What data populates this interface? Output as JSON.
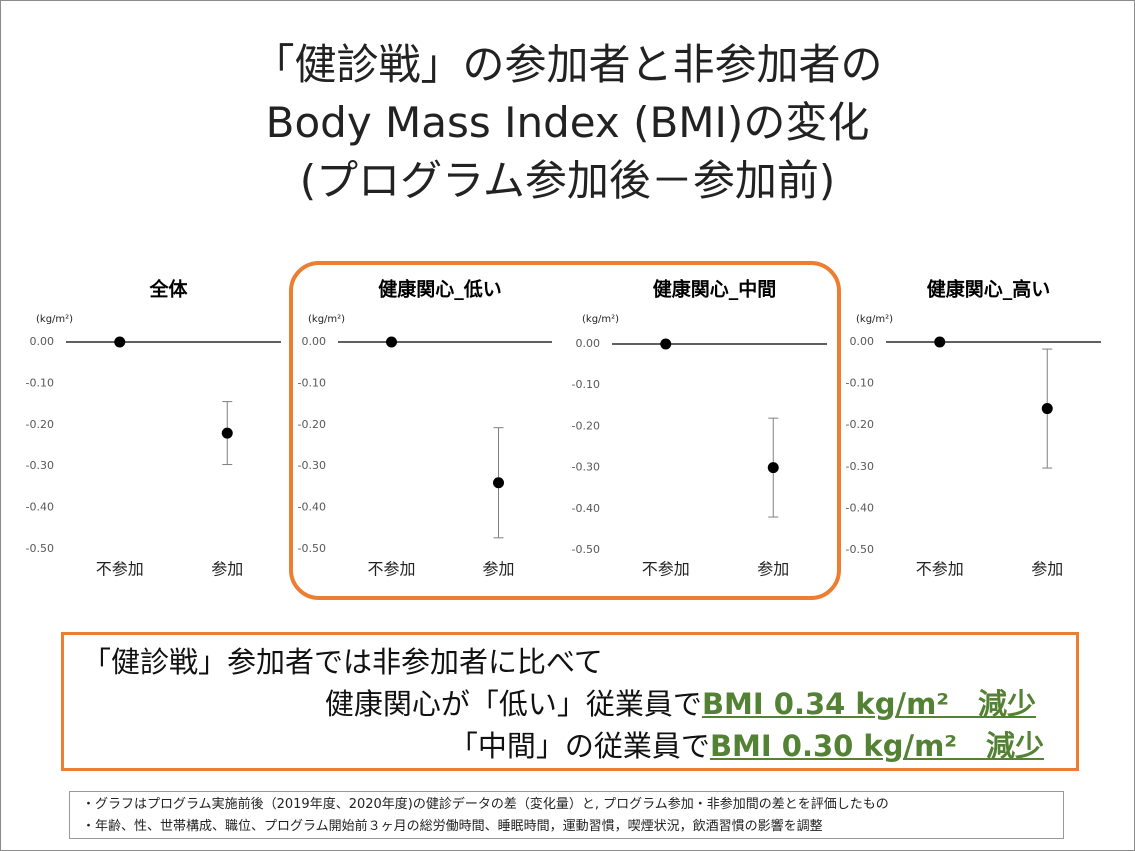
{
  "title_lines": [
    "「健診戦」の参加者と非参加者の",
    "Body Mass Index (BMI)の変化",
    "(プログラム参加後－参加前)"
  ],
  "chart_data": [
    {
      "type": "errorbar",
      "title": "全体",
      "y_unit": "(kg/m²)",
      "categories": [
        "不参加",
        "参加"
      ],
      "values": [
        0,
        -0.22
      ],
      "errors": [
        null,
        0.076
      ],
      "color": "#000000",
      "ylim": [
        -0.5,
        0
      ],
      "yticks": [
        {
          "value": 0,
          "label": "0.00"
        },
        {
          "value": -0.1,
          "label": "-0.10"
        },
        {
          "value": -0.2,
          "label": "-0.20"
        },
        {
          "value": -0.3,
          "label": "-0.30"
        },
        {
          "value": -0.4,
          "label": "-0.40"
        },
        {
          "value": -0.5,
          "label": "-0.50"
        }
      ]
    },
    {
      "type": "errorbar",
      "title": "健康関心_低い",
      "y_unit": "(kg/m²)",
      "categories": [
        "不参加",
        "参加"
      ],
      "values": [
        0,
        -0.34
      ],
      "errors": [
        null,
        0.133
      ],
      "color": "#000000",
      "ylim": [
        -0.5,
        0
      ],
      "yticks": [
        {
          "value": 0,
          "label": "0.00"
        },
        {
          "value": -0.1,
          "label": "-0.10"
        },
        {
          "value": -0.2,
          "label": "-0.20"
        },
        {
          "value": -0.3,
          "label": "-0.30"
        },
        {
          "value": -0.4,
          "label": "-0.40"
        },
        {
          "value": -0.5,
          "label": "-0.50"
        }
      ]
    },
    {
      "type": "errorbar",
      "title": "健康関心_中間",
      "y_unit": "(kg/m²)",
      "categories": [
        "不参加",
        "参加"
      ],
      "values": [
        0,
        -0.3
      ],
      "errors": [
        null,
        0.12
      ],
      "color": "#000000",
      "ylim": [
        -0.5,
        0
      ],
      "yticks": [
        {
          "value": 0,
          "label": "0.00"
        },
        {
          "value": -0.1,
          "label": "-0.10"
        },
        {
          "value": -0.2,
          "label": "-0.20"
        },
        {
          "value": -0.3,
          "label": "-0.30"
        },
        {
          "value": -0.4,
          "label": "-0.40"
        },
        {
          "value": -0.5,
          "label": "-0.50"
        }
      ]
    },
    {
      "type": "errorbar",
      "title": "健康関心_高い",
      "y_unit": "(kg/m²)",
      "categories": [
        "不参加",
        "参加"
      ],
      "values": [
        0,
        -0.16
      ],
      "errors": [
        null,
        0.143
      ],
      "color": "#000000",
      "ylim": [
        -0.5,
        0
      ],
      "yticks": [
        {
          "value": 0,
          "label": "0.00"
        },
        {
          "value": -0.1,
          "label": "-0.10"
        },
        {
          "value": -0.2,
          "label": "-0.20"
        },
        {
          "value": -0.3,
          "label": "-0.30"
        },
        {
          "value": -0.4,
          "label": "-0.40"
        },
        {
          "value": -0.5,
          "label": "-0.50"
        }
      ]
    }
  ],
  "summary": {
    "lines": [
      [
        {
          "text": "「健診戦」参加者では非参加者に比べて"
        }
      ],
      [
        {
          "text": "健康関心が「低い」従業員で"
        },
        {
          "text": "BMI 0.34 kg/m²　減少",
          "color": "#548235"
        }
      ],
      [
        {
          "text": "「中間」の従業員で"
        },
        {
          "text": "BMI 0.30 kg/m²　減少",
          "color": "#548235"
        }
      ]
    ]
  },
  "footnotes": [
    "・グラフはプログラム実施前後（2019年度、2020年度)の健診データの差（変化量）と, プログラム参加・非参加間の差とを評価したもの",
    "・年齢、性、世帯構成、職位、プログラム開始前３ヶ月の総労働時間、睡眠時間，運動習慣，喫煙状況，飲酒習慣の影響を調整"
  ]
}
